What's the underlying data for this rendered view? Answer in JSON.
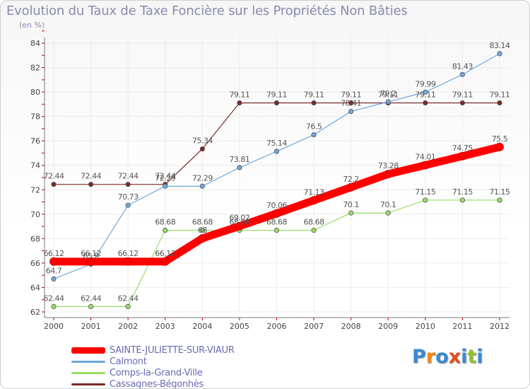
{
  "colors": {
    "title": "#8a8ab0",
    "axis": "#7a7a7a",
    "grid": "#ececec",
    "logo": [
      "#3a8ad0",
      "#f08a1a",
      "#3a8ad0",
      "#e05020",
      "#3a8ad0",
      "#90c030"
    ]
  },
  "logo": {
    "text": "Proxiti"
  },
  "chart_data": {
    "type": "line",
    "title": "Evolution du Taux de Taxe Foncière sur les Propriétés Non Bâties",
    "subtitle": "(en %)",
    "xlabel": "",
    "ylabel": "",
    "x": [
      "2000",
      "2001",
      "2002",
      "2003",
      "2004",
      "2005",
      "2006",
      "2007",
      "2008",
      "2009",
      "2010",
      "2011",
      "2012"
    ],
    "ylim": [
      62,
      84
    ],
    "yticks": [
      62,
      64,
      66,
      68,
      70,
      72,
      74,
      76,
      78,
      80,
      82,
      84
    ],
    "grid": true,
    "legend_position": "bottom-left",
    "series": [
      {
        "name": "SAINTE-JULIETTE-SUR-VIAUR",
        "color": "#ff0000",
        "width": 11,
        "values": [
          66.12,
          66.12,
          66.12,
          66.12,
          68.02,
          69.02,
          70.06,
          71.13,
          72.2,
          73.28,
          74.01,
          74.75,
          75.5
        ],
        "labels": [
          "66.12",
          "66.12",
          "66.12",
          "66.12",
          "68",
          "69.02",
          "70.06",
          "71.13",
          "72.2",
          "73.28",
          "74.01",
          "74.75",
          "75.5"
        ]
      },
      {
        "name": "Calmont",
        "color": "#6fa8dc",
        "width": 1.2,
        "values": [
          64.7,
          65.9,
          70.73,
          72.29,
          72.29,
          73.81,
          75.14,
          76.5,
          78.41,
          79.2,
          79.99,
          81.43,
          83.14
        ],
        "labels": [
          "64.7",
          "65.9",
          "70.73",
          "72.29",
          "72.29",
          "73.81",
          "75.14",
          "76.5",
          "78.41",
          "79.2",
          "79.99",
          "81.43",
          "83.14"
        ]
      },
      {
        "name": "Comps-la-Grand-Ville",
        "color": "#99dd66",
        "width": 1.2,
        "values": [
          62.44,
          62.44,
          62.44,
          68.68,
          68.68,
          68.68,
          68.68,
          68.68,
          70.1,
          70.1,
          71.15,
          71.15,
          71.15
        ],
        "labels": [
          "62.44",
          "62.44",
          "62.44",
          "68.68",
          "68.68",
          "68.68",
          "68.68",
          "68.68",
          "70.1",
          "70.1",
          "71.15",
          "71.15",
          "71.15"
        ]
      },
      {
        "name": "Cassagnes-Bégonhès",
        "color": "#7a2a2a",
        "width": 1.2,
        "values": [
          72.44,
          72.44,
          72.44,
          72.44,
          75.34,
          79.11,
          79.11,
          79.11,
          79.11,
          79.11,
          79.11,
          79.11,
          79.11
        ],
        "labels": [
          "72.44",
          "72.44",
          "72.44",
          "72.44",
          "75.34",
          "79.11",
          "79.11",
          "79.11",
          "79.11",
          "79.11",
          "79.11",
          "79.11",
          "79.11"
        ]
      }
    ]
  }
}
